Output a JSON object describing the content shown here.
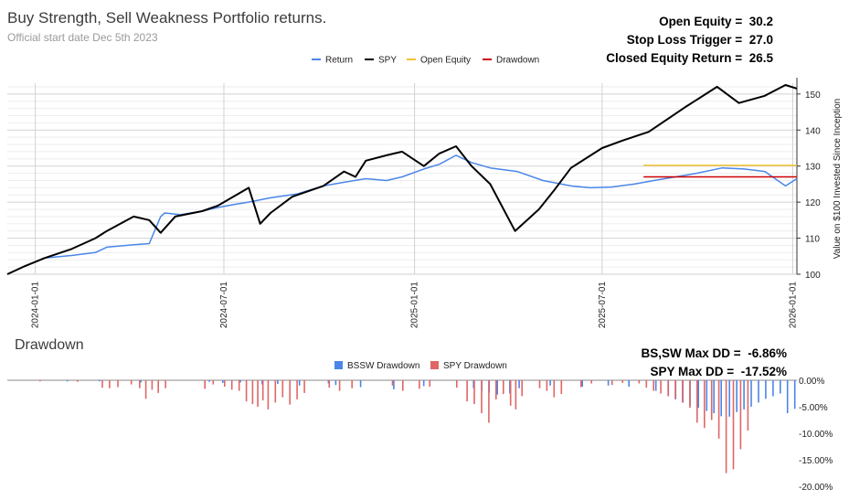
{
  "header": {
    "title": "Buy Strength, Sell Weakness Portfolio returns.",
    "subtitle": "Official start date Dec 5th 2023"
  },
  "stats_top": [
    {
      "label": "Open Equity =",
      "value": "30.2"
    },
    {
      "label": "Stop Loss Trigger =",
      "value": "27.0"
    },
    {
      "label": "Closed Equity Return =",
      "value": "26.5"
    }
  ],
  "stats_bottom": [
    {
      "label": "BS,SW Max DD =",
      "value": "-6.86%"
    },
    {
      "label": "SPY Max DD =",
      "value": "-17.52%"
    }
  ],
  "drawdown_title": "Drawdown",
  "chart_data": [
    {
      "type": "line",
      "title": "Buy Strength, Sell Weakness Portfolio returns.",
      "ylabel": "Value on $100 Invested Since Inception",
      "ylim": [
        100,
        153
      ],
      "xlim": [
        "2023-12-05",
        "2026-01-05"
      ],
      "x_ticks": [
        "2024-01-01",
        "2024-07-01",
        "2025-01-01",
        "2025-07-01",
        "2026-01-01"
      ],
      "y_ticks": [
        "100",
        "110",
        "120",
        "130",
        "140",
        "150"
      ],
      "legend": [
        "Return",
        "SPY",
        "Open Equity",
        "Drawdown"
      ],
      "colors": {
        "Return": "#4a86e8",
        "SPY": "#000000",
        "Open Equity": "#f1c232",
        "Drawdown": "#cc0000"
      },
      "series": [
        {
          "name": "Return",
          "x": [
            "2023-12-05",
            "2023-12-20",
            "2024-01-10",
            "2024-02-05",
            "2024-02-28",
            "2024-03-10",
            "2024-04-05",
            "2024-04-20",
            "2024-05-01",
            "2024-05-05",
            "2024-05-20",
            "2024-06-10",
            "2024-06-25",
            "2024-07-10",
            "2024-07-25",
            "2024-08-15",
            "2024-09-10",
            "2024-10-05",
            "2024-10-25",
            "2024-11-15",
            "2024-12-05",
            "2024-12-20",
            "2025-01-10",
            "2025-01-25",
            "2025-02-10",
            "2025-02-25",
            "2025-03-15",
            "2025-04-10",
            "2025-05-05",
            "2025-06-01",
            "2025-06-20",
            "2025-07-10",
            "2025-08-01",
            "2025-08-20",
            "2025-09-10",
            "2025-09-30",
            "2025-10-25",
            "2025-11-15",
            "2025-12-05",
            "2025-12-25",
            "2026-01-05"
          ],
          "values": [
            100,
            102,
            104.5,
            105.2,
            106,
            107.5,
            108.2,
            108.5,
            116,
            117,
            116.5,
            117.5,
            118.5,
            119.3,
            120,
            121.2,
            122.3,
            124.5,
            125.5,
            126.5,
            126,
            127,
            129.2,
            130.5,
            133,
            131,
            129.5,
            128.5,
            126,
            124.5,
            124,
            124.2,
            125,
            126,
            127,
            128,
            129.5,
            129.2,
            128.5,
            124.5,
            126.5
          ]
        },
        {
          "name": "SPY",
          "x": [
            "2023-12-05",
            "2023-12-20",
            "2024-01-10",
            "2024-02-05",
            "2024-02-28",
            "2024-03-10",
            "2024-04-05",
            "2024-04-20",
            "2024-05-01",
            "2024-05-15",
            "2024-06-10",
            "2024-06-25",
            "2024-07-10",
            "2024-07-25",
            "2024-08-05",
            "2024-08-15",
            "2024-09-05",
            "2024-09-20",
            "2024-10-05",
            "2024-10-25",
            "2024-11-05",
            "2024-11-15",
            "2024-12-05",
            "2024-12-20",
            "2025-01-10",
            "2025-01-25",
            "2025-02-10",
            "2025-02-25",
            "2025-03-15",
            "2025-04-08",
            "2025-05-01",
            "2025-05-15",
            "2025-06-01",
            "2025-07-01",
            "2025-07-20",
            "2025-08-15",
            "2025-09-20",
            "2025-10-20",
            "2025-11-10",
            "2025-12-05",
            "2025-12-25",
            "2026-01-05"
          ],
          "values": [
            100,
            102,
            104.5,
            107,
            110,
            112,
            116,
            115,
            111.5,
            116,
            117.5,
            119,
            121.5,
            124,
            114,
            117,
            121.5,
            123,
            124.5,
            128.5,
            127,
            131.5,
            133,
            134,
            130,
            133.5,
            135.5,
            130,
            125,
            112,
            118,
            123,
            129.5,
            135,
            137,
            139.5,
            146.5,
            152,
            147.5,
            149.5,
            152.5,
            151.5
          ]
        },
        {
          "name": "Open Equity",
          "x": [
            "2025-08-10",
            "2026-01-05"
          ],
          "values": [
            130.2,
            130.2
          ]
        },
        {
          "name": "Drawdown",
          "x": [
            "2025-08-10",
            "2026-01-05"
          ],
          "values": [
            127,
            127
          ]
        }
      ]
    },
    {
      "type": "bar",
      "title": "Drawdown",
      "ylim": [
        -20,
        0
      ],
      "y_ticks": [
        "0.00%",
        "-5.00%",
        "-10.00%",
        "-15.00%",
        "-20.00%"
      ],
      "legend": [
        "BSSW Drawdown",
        "SPY Drawdown"
      ],
      "colors": {
        "BSSW Drawdown": "#4a86e8",
        "SPY Drawdown": "#e06666"
      },
      "series": [
        {
          "name": "BSSW Drawdown",
          "x": [
            "2024-01-30",
            "2024-03-01",
            "2024-04-10",
            "2024-06-15",
            "2024-06-28",
            "2024-07-15",
            "2024-08-05",
            "2024-08-20",
            "2024-09-10",
            "2024-10-08",
            "2024-10-15",
            "2024-11-08",
            "2024-12-10",
            "2025-01-08",
            "2025-02-25",
            "2025-03-05",
            "2025-03-12",
            "2025-03-20",
            "2025-04-01",
            "2025-04-10",
            "2025-05-10",
            "2025-06-10",
            "2025-07-05",
            "2025-07-25",
            "2025-08-20",
            "2025-09-01",
            "2025-09-08",
            "2025-09-15",
            "2025-09-22",
            "2025-09-30",
            "2025-10-08",
            "2025-10-15",
            "2025-10-22",
            "2025-10-30",
            "2025-11-06",
            "2025-11-13",
            "2025-11-20",
            "2025-11-27",
            "2025-12-04",
            "2025-12-11",
            "2025-12-18",
            "2025-12-25",
            "2026-01-01"
          ],
          "values": [
            -0.2,
            -0.2,
            -0.4,
            -0.3,
            -0.5,
            -0.4,
            -0.8,
            -0.7,
            -1.0,
            -0.6,
            -0.9,
            -1.3,
            -1.7,
            -1.1,
            -1.5,
            -2.0,
            -2.3,
            -2.7,
            -2.5,
            -1.5,
            -1.0,
            -1.2,
            -1.0,
            -1.2,
            -2.0,
            -3.0,
            -3.6,
            -4.2,
            -4.8,
            -5.2,
            -5.8,
            -6.2,
            -6.8,
            -6.86,
            -6.0,
            -5.5,
            -5.0,
            -4.2,
            -3.5,
            -3.0,
            -2.5,
            -6.2,
            -5.4
          ]
        },
        {
          "name": "SPY Drawdown",
          "x": [
            "2024-01-05",
            "2024-02-10",
            "2024-03-05",
            "2024-03-12",
            "2024-03-20",
            "2024-04-02",
            "2024-04-10",
            "2024-04-16",
            "2024-04-22",
            "2024-04-28",
            "2024-05-05",
            "2024-06-12",
            "2024-06-20",
            "2024-07-01",
            "2024-07-08",
            "2024-07-15",
            "2024-07-22",
            "2024-07-28",
            "2024-08-02",
            "2024-08-07",
            "2024-08-12",
            "2024-08-19",
            "2024-08-26",
            "2024-09-02",
            "2024-09-09",
            "2024-09-16",
            "2024-10-10",
            "2024-10-20",
            "2024-11-01",
            "2024-12-10",
            "2024-12-20",
            "2025-01-05",
            "2025-01-15",
            "2025-02-10",
            "2025-02-20",
            "2025-02-27",
            "2025-03-06",
            "2025-03-13",
            "2025-03-20",
            "2025-03-27",
            "2025-04-03",
            "2025-04-08",
            "2025-04-14",
            "2025-05-01",
            "2025-05-08",
            "2025-05-15",
            "2025-05-22",
            "2025-06-10",
            "2025-06-20",
            "2025-07-10",
            "2025-07-20",
            "2025-08-05",
            "2025-08-12",
            "2025-08-19",
            "2025-08-26",
            "2025-09-02",
            "2025-09-09",
            "2025-09-16",
            "2025-09-23",
            "2025-09-30",
            "2025-10-07",
            "2025-10-14",
            "2025-10-21",
            "2025-10-28",
            "2025-11-04",
            "2025-11-11",
            "2025-11-18"
          ],
          "values": [
            -0.2,
            -0.3,
            -1.4,
            -1.5,
            -1.3,
            -0.8,
            -1.5,
            -3.5,
            -1.8,
            -2.4,
            -1.5,
            -1.6,
            -0.8,
            -1.2,
            -1.8,
            -2.0,
            -4.0,
            -4.5,
            -5.0,
            -3.8,
            -5.5,
            -4.2,
            -3.2,
            -4.6,
            -3.6,
            -2.4,
            -1.4,
            -2.0,
            -1.5,
            -1.0,
            -2.0,
            -1.6,
            -1.2,
            -1.4,
            -4.0,
            -4.5,
            -6.2,
            -8.0,
            -3.6,
            -2.6,
            -4.8,
            -5.5,
            -3.0,
            -1.5,
            -2.0,
            -3.2,
            -2.6,
            -1.3,
            -0.6,
            -0.9,
            -0.5,
            -0.6,
            -1.4,
            -2.0,
            -2.5,
            -3.0,
            -3.5,
            -4.2,
            -5.2,
            -8.0,
            -9.0,
            -7.5,
            -11.0,
            -17.52,
            -16.8,
            -13.0,
            -9.5
          ]
        }
      ]
    }
  ]
}
